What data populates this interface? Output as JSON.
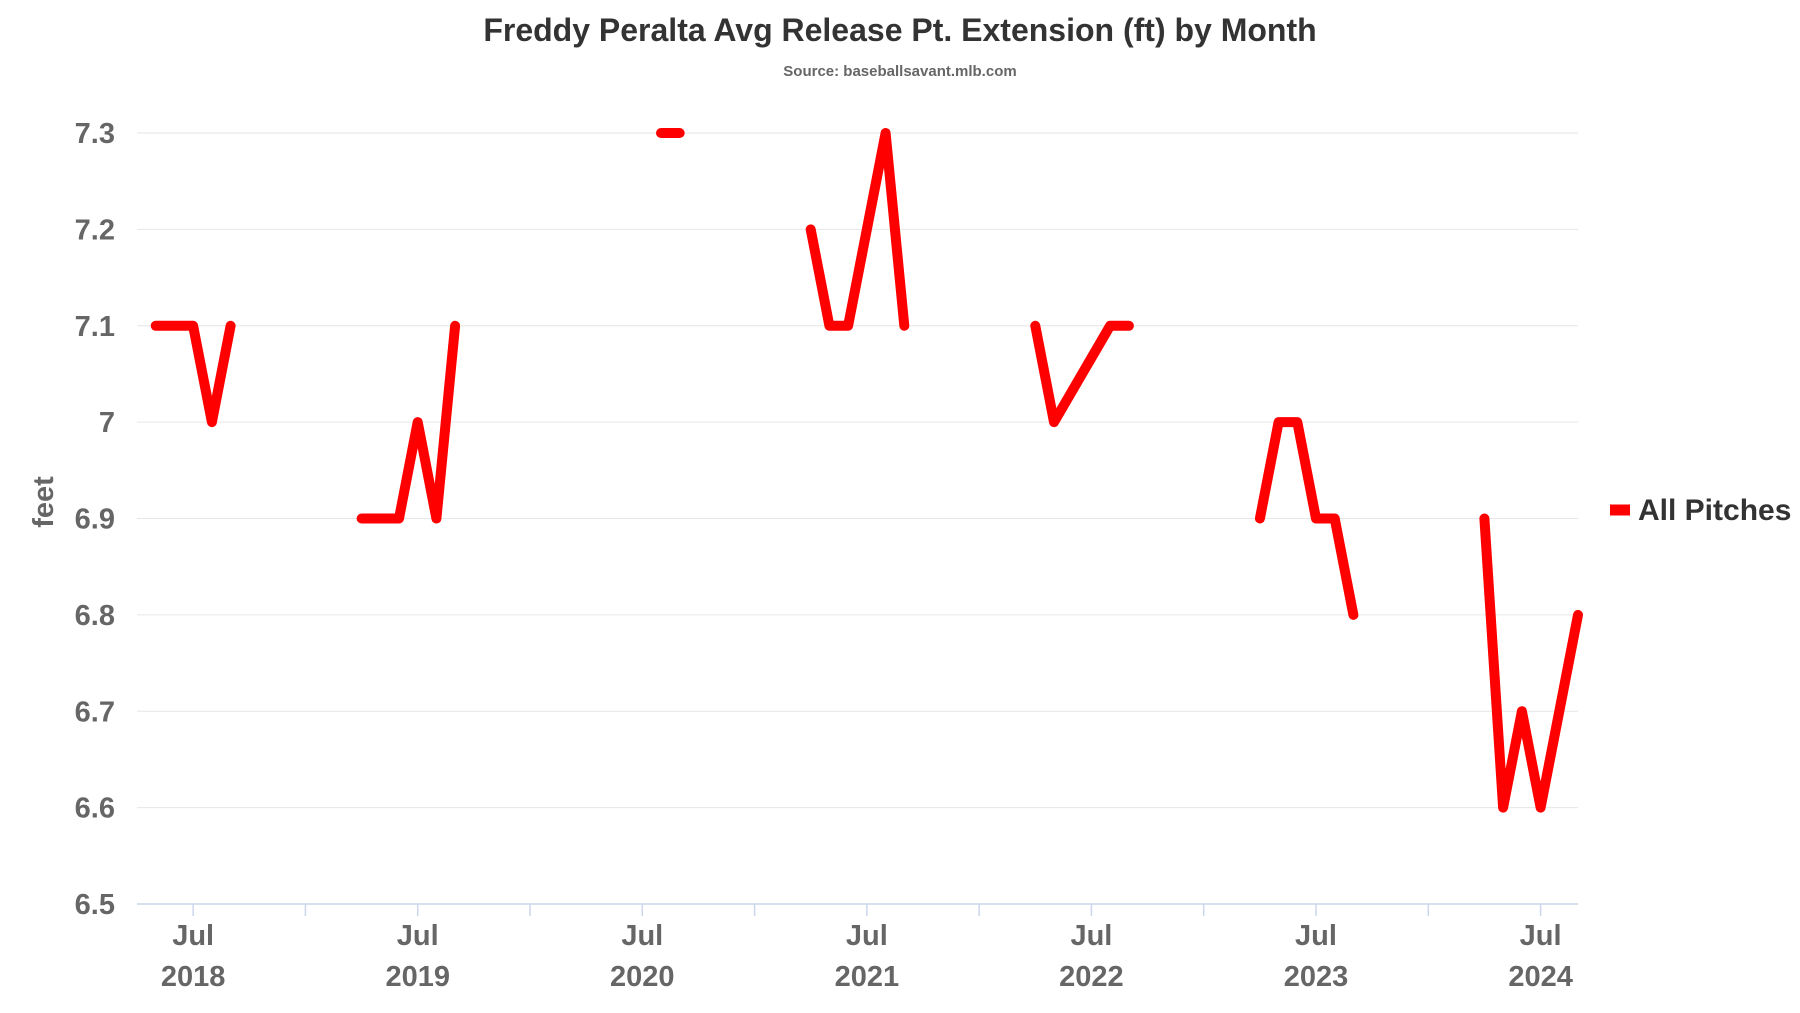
{
  "chart_data": {
    "type": "line",
    "title": "Freddy Peralta Avg Release Pt. Extension (ft) by Month",
    "subtitle": "Source: baseballsavant.mlb.com",
    "ylabel": "feet",
    "xlabel": "",
    "ylim": [
      6.5,
      7.3
    ],
    "yticks": [
      {
        "value": 7.3,
        "label": "7.3"
      },
      {
        "value": 7.2,
        "label": "7.2"
      },
      {
        "value": 7.1,
        "label": "7.1"
      },
      {
        "value": 7.0,
        "label": "7"
      },
      {
        "value": 6.9,
        "label": "6.9"
      },
      {
        "value": 6.8,
        "label": "6.8"
      },
      {
        "value": 6.7,
        "label": "6.7"
      },
      {
        "value": 6.6,
        "label": "6.6"
      },
      {
        "value": 6.5,
        "label": "6.5"
      }
    ],
    "xlim": [
      "2018-04",
      "2024-09"
    ],
    "xticks": [
      {
        "date": "2018-07",
        "month": "Jul",
        "year": "2018"
      },
      {
        "date": "2019-07",
        "month": "Jul",
        "year": "2019"
      },
      {
        "date": "2020-07",
        "month": "Jul",
        "year": "2020"
      },
      {
        "date": "2021-07",
        "month": "Jul",
        "year": "2021"
      },
      {
        "date": "2022-07",
        "month": "Jul",
        "year": "2022"
      },
      {
        "date": "2023-07",
        "month": "Jul",
        "year": "2023"
      },
      {
        "date": "2024-07",
        "month": "Jul",
        "year": "2024"
      }
    ],
    "minor_ticks": [
      "2019-01",
      "2020-01",
      "2021-01",
      "2022-01",
      "2023-01",
      "2024-01"
    ],
    "grid": true,
    "legend_position": "right",
    "series": [
      {
        "name": "All Pitches",
        "color": "#ff0000",
        "segments": [
          [
            {
              "x": "2018-05",
              "y": 7.1
            },
            {
              "x": "2018-06",
              "y": 7.1
            },
            {
              "x": "2018-07",
              "y": 7.1
            },
            {
              "x": "2018-08",
              "y": 7.0
            },
            {
              "x": "2018-09",
              "y": 7.1
            }
          ],
          [
            {
              "x": "2019-04",
              "y": 6.9
            },
            {
              "x": "2019-05",
              "y": 6.9
            },
            {
              "x": "2019-06",
              "y": 6.9
            },
            {
              "x": "2019-07",
              "y": 7.0
            },
            {
              "x": "2019-08",
              "y": 6.9
            },
            {
              "x": "2019-09",
              "y": 7.1
            }
          ],
          [
            {
              "x": "2020-08",
              "y": 7.3
            },
            {
              "x": "2020-09",
              "y": 7.3
            }
          ],
          [
            {
              "x": "2021-04",
              "y": 7.2
            },
            {
              "x": "2021-05",
              "y": 7.1
            },
            {
              "x": "2021-06",
              "y": 7.1
            },
            {
              "x": "2021-08",
              "y": 7.3
            },
            {
              "x": "2021-09",
              "y": 7.1
            }
          ],
          [
            {
              "x": "2022-04",
              "y": 7.1
            },
            {
              "x": "2022-05",
              "y": 7.0
            },
            {
              "x": "2022-08",
              "y": 7.1
            },
            {
              "x": "2022-09",
              "y": 7.1
            }
          ],
          [
            {
              "x": "2023-04",
              "y": 6.9
            },
            {
              "x": "2023-05",
              "y": 7.0
            },
            {
              "x": "2023-06",
              "y": 7.0
            },
            {
              "x": "2023-07",
              "y": 6.9
            },
            {
              "x": "2023-08",
              "y": 6.9
            },
            {
              "x": "2023-09",
              "y": 6.8
            }
          ],
          [
            {
              "x": "2024-04",
              "y": 6.9
            },
            {
              "x": "2024-05",
              "y": 6.6
            },
            {
              "x": "2024-06",
              "y": 6.7
            },
            {
              "x": "2024-07",
              "y": 6.6
            },
            {
              "x": "2024-09",
              "y": 6.8
            }
          ]
        ]
      }
    ]
  }
}
